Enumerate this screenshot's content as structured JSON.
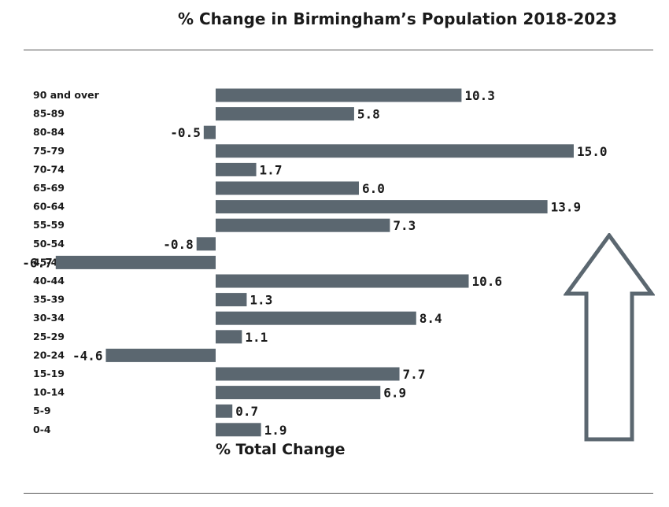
{
  "title": "% Change in Birmingham’s Population 2018-2023",
  "colors": {
    "bar": "#5b6770",
    "arrow": "#5b6770"
  },
  "chart_data": {
    "type": "bar",
    "orientation": "horizontal",
    "title": "% Change in Birmingham’s Population 2018-2023",
    "xlabel": "% Total Change",
    "ylabel": "",
    "categories": [
      "90 and over",
      "85-89",
      "80-84",
      "75-79",
      "70-74",
      "65-69",
      "60-64",
      "55-59",
      "50-54",
      "45-49",
      "40-44",
      "35-39",
      "30-34",
      "25-29",
      "20-24",
      "15-19",
      "10-14",
      "5-9",
      "0-4"
    ],
    "values": [
      10.3,
      5.8,
      -0.5,
      15.0,
      1.7,
      6.0,
      13.9,
      7.3,
      -0.8,
      -6.7,
      10.6,
      1.3,
      8.4,
      1.1,
      -4.6,
      7.7,
      6.9,
      0.7,
      1.9
    ],
    "value_labels": [
      "10.3",
      "5.8",
      "-0.5",
      "15.0",
      "1.7",
      "6.0",
      "13.9",
      "7.3",
      "-0.8",
      "-6.7",
      "10.6",
      "1.3",
      "8.4",
      "1.1",
      "-4.6",
      "7.7",
      "6.9",
      "0.7",
      "1.9"
    ],
    "grid": false,
    "legend": "none"
  },
  "decoration": {
    "arrow_icon": "up-arrow-icon"
  }
}
